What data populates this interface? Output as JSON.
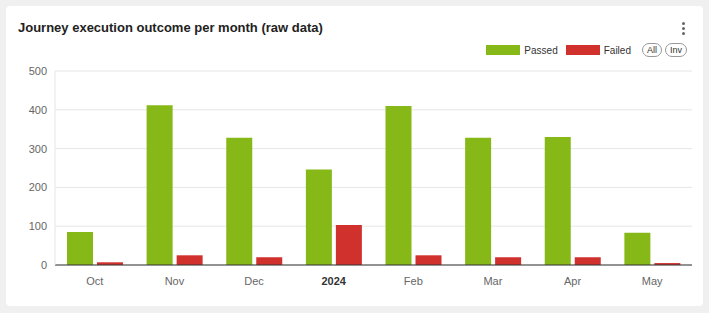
{
  "chart_data": {
    "type": "bar",
    "title": "Journey execution outcome per month (raw data)",
    "categories": [
      "Oct",
      "Nov",
      "Dec",
      "2024",
      "Feb",
      "Mar",
      "Apr",
      "May"
    ],
    "series": [
      {
        "name": "Passed",
        "color": "#86b817",
        "values": [
          85,
          412,
          328,
          246,
          410,
          328,
          330,
          83
        ]
      },
      {
        "name": "Failed",
        "color": "#d0312d",
        "values": [
          7,
          25,
          20,
          103,
          25,
          20,
          20,
          5
        ]
      }
    ],
    "ylim": [
      0,
      500
    ],
    "yticks": [
      0,
      100,
      200,
      300,
      400,
      500
    ],
    "grid": true,
    "legend": "top-right",
    "annotations": [
      "All",
      "Inv"
    ]
  }
}
